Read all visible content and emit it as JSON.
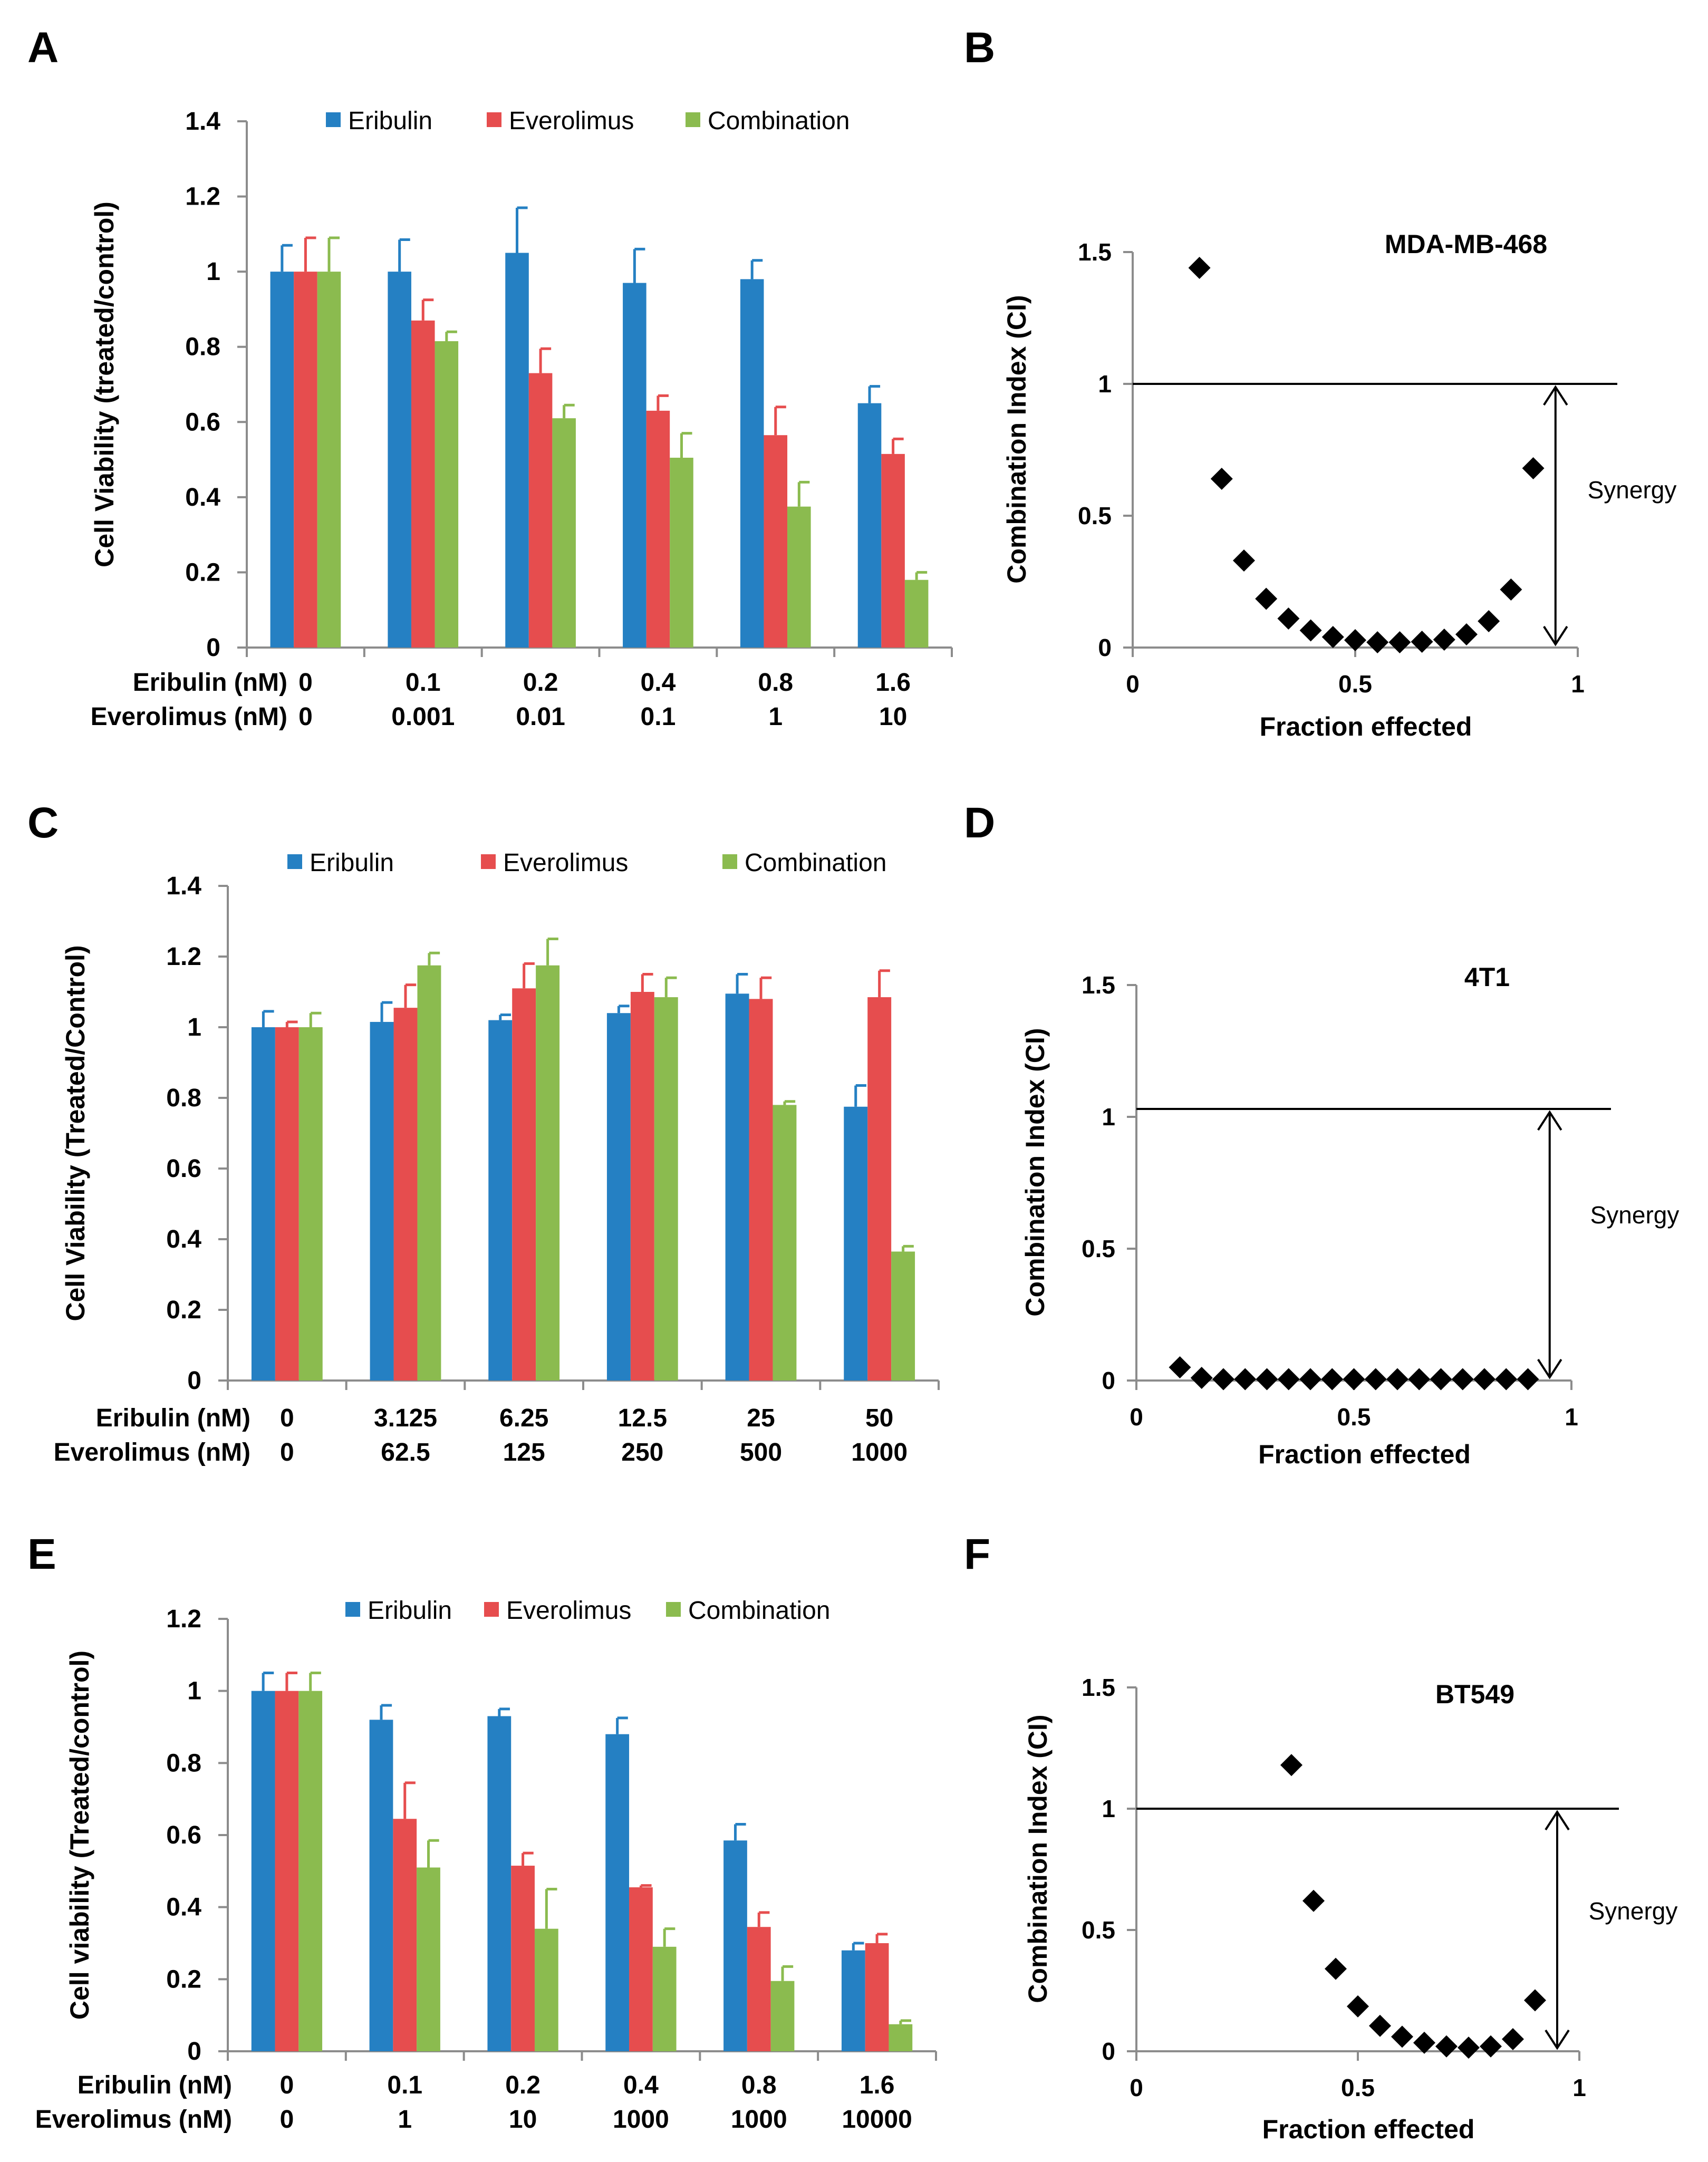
{
  "colors": {
    "eribulin": "#2580C3",
    "everolimus": "#E64D4E",
    "combination": "#8BBB4F",
    "axis": "#8c8c8c",
    "text": "#000000"
  },
  "chart_data": [
    {
      "panel": "A",
      "type": "bar",
      "ylabel": "Cell Viability (treated/control)",
      "ylim": [
        0,
        1.4
      ],
      "yticks": [
        "0",
        "0.2",
        "0.4",
        "0.6",
        "0.8",
        "1",
        "1.2",
        "1.4"
      ],
      "legend": [
        "Eribulin",
        "Everolimus",
        "Combination"
      ],
      "row_labels": [
        "Eribulin (nM)",
        "Everolimus (nM)"
      ],
      "categories_row1": [
        "0",
        "0.1",
        "0.2",
        "0.4",
        "0.8",
        "1.6"
      ],
      "categories_row2": [
        "0",
        "0.001",
        "0.01",
        "0.1",
        "1",
        "10"
      ],
      "series": [
        {
          "name": "Eribulin",
          "values": [
            1.0,
            1.0,
            1.05,
            0.97,
            0.98,
            0.65
          ],
          "errors": [
            0.07,
            0.085,
            0.12,
            0.09,
            0.05,
            0.045
          ]
        },
        {
          "name": "Everolimus",
          "values": [
            1.0,
            0.87,
            0.73,
            0.63,
            0.565,
            0.515
          ],
          "errors": [
            0.09,
            0.055,
            0.065,
            0.04,
            0.075,
            0.04
          ]
        },
        {
          "name": "Combination",
          "values": [
            1.0,
            0.815,
            0.61,
            0.505,
            0.375,
            0.18
          ],
          "errors": [
            0.09,
            0.025,
            0.035,
            0.065,
            0.065,
            0.02
          ]
        }
      ]
    },
    {
      "panel": "B",
      "type": "scatter",
      "title": "MDA-MB-468",
      "xlabel": "Fraction effected",
      "ylabel": "Combination Index (CI)",
      "xlim": [
        0,
        1
      ],
      "ylim": [
        0,
        1.5
      ],
      "xticks": [
        "0",
        "0.5",
        "1"
      ],
      "yticks": [
        "0",
        "0.5",
        "1",
        "1.5"
      ],
      "reference_line": 1,
      "annotation": "Synergy",
      "x": [
        0.15,
        0.2,
        0.25,
        0.3,
        0.35,
        0.4,
        0.45,
        0.5,
        0.55,
        0.6,
        0.65,
        0.7,
        0.75,
        0.8,
        0.85,
        0.9
      ],
      "y": [
        1.44,
        0.64,
        0.33,
        0.185,
        0.11,
        0.065,
        0.04,
        0.028,
        0.02,
        0.02,
        0.022,
        0.03,
        0.05,
        0.1,
        0.22,
        0.68
      ]
    },
    {
      "panel": "C",
      "type": "bar",
      "ylabel": "Cell Viability (Treated/Control)",
      "ylim": [
        0,
        1.4
      ],
      "yticks": [
        "0",
        "0.2",
        "0.4",
        "0.6",
        "0.8",
        "1",
        "1.2",
        "1.4"
      ],
      "legend": [
        "Eribulin",
        "Everolimus",
        "Combination"
      ],
      "row_labels": [
        "Eribulin (nM)",
        "Everolimus (nM)"
      ],
      "categories_row1": [
        "0",
        "3.125",
        "6.25",
        "12.5",
        "25",
        "50"
      ],
      "categories_row2": [
        "0",
        "62.5",
        "125",
        "250",
        "500",
        "1000"
      ],
      "series": [
        {
          "name": "Eribulin",
          "values": [
            1.0,
            1.015,
            1.02,
            1.04,
            1.095,
            0.775
          ],
          "errors": [
            0.045,
            0.055,
            0.015,
            0.02,
            0.055,
            0.06
          ]
        },
        {
          "name": "Everolimus",
          "values": [
            1.0,
            1.055,
            1.11,
            1.1,
            1.08,
            1.085
          ],
          "errors": [
            0.015,
            0.065,
            0.07,
            0.05,
            0.06,
            0.075
          ]
        },
        {
          "name": "Combination",
          "values": [
            1.0,
            1.175,
            1.175,
            1.085,
            0.78,
            0.365
          ],
          "errors": [
            0.04,
            0.035,
            0.075,
            0.055,
            0.01,
            0.015
          ]
        }
      ]
    },
    {
      "panel": "D",
      "type": "scatter",
      "title": "4T1",
      "xlabel": "Fraction effected",
      "ylabel": "Combination Index (CI)",
      "xlim": [
        0,
        1
      ],
      "ylim": [
        0,
        1.5
      ],
      "xticks": [
        "0",
        "0.5",
        "1"
      ],
      "yticks": [
        "0",
        "0.5",
        "1",
        "1.5"
      ],
      "reference_line": 1.03,
      "annotation": "Synergy",
      "x": [
        0.1,
        0.15,
        0.2,
        0.25,
        0.3,
        0.35,
        0.4,
        0.45,
        0.5,
        0.55,
        0.6,
        0.65,
        0.7,
        0.75,
        0.8,
        0.85,
        0.9
      ],
      "y": [
        0.05,
        0.01,
        0.005,
        0.005,
        0.005,
        0.005,
        0.005,
        0.005,
        0.005,
        0.005,
        0.005,
        0.005,
        0.005,
        0.005,
        0.005,
        0.005,
        0.005
      ]
    },
    {
      "panel": "E",
      "type": "bar",
      "ylabel": "Cell viability (Treated/control)",
      "ylim": [
        0,
        1.2
      ],
      "yticks": [
        "0",
        "0.2",
        "0.4",
        "0.6",
        "0.8",
        "1",
        "1.2"
      ],
      "legend": [
        "Eribulin",
        "Everolimus",
        "Combination"
      ],
      "row_labels": [
        "Eribulin (nM)",
        "Everolimus (nM)"
      ],
      "categories_row1": [
        "0",
        "0.1",
        "0.2",
        "0.4",
        "0.8",
        "1.6"
      ],
      "categories_row2": [
        "0",
        "1",
        "10",
        "1000",
        "1000",
        "10000"
      ],
      "series": [
        {
          "name": "Eribulin",
          "values": [
            1.0,
            0.92,
            0.93,
            0.88,
            0.585,
            0.28
          ],
          "errors": [
            0.05,
            0.04,
            0.02,
            0.045,
            0.045,
            0.02
          ]
        },
        {
          "name": "Everolimus",
          "values": [
            1.0,
            0.645,
            0.515,
            0.455,
            0.345,
            0.3
          ],
          "errors": [
            0.05,
            0.1,
            0.035,
            0.005,
            0.04,
            0.025
          ]
        },
        {
          "name": "Combination",
          "values": [
            1.0,
            0.51,
            0.34,
            0.29,
            0.195,
            0.075
          ],
          "errors": [
            0.05,
            0.075,
            0.11,
            0.05,
            0.04,
            0.01
          ]
        }
      ]
    },
    {
      "panel": "F",
      "type": "scatter",
      "title": "BT549",
      "xlabel": "Fraction effected",
      "ylabel": "Combination Index (CI)",
      "xlim": [
        0,
        1
      ],
      "ylim": [
        0,
        1.5
      ],
      "xticks": [
        "0",
        "0.5",
        "1"
      ],
      "yticks": [
        "0",
        "0.5",
        "1",
        "1.5"
      ],
      "reference_line": 1,
      "annotation": "Synergy",
      "x": [
        0.35,
        0.4,
        0.45,
        0.5,
        0.55,
        0.6,
        0.65,
        0.7,
        0.75,
        0.8,
        0.85,
        0.9
      ],
      "y": [
        1.18,
        0.62,
        0.34,
        0.185,
        0.105,
        0.06,
        0.035,
        0.02,
        0.015,
        0.02,
        0.05,
        0.21
      ]
    }
  ]
}
